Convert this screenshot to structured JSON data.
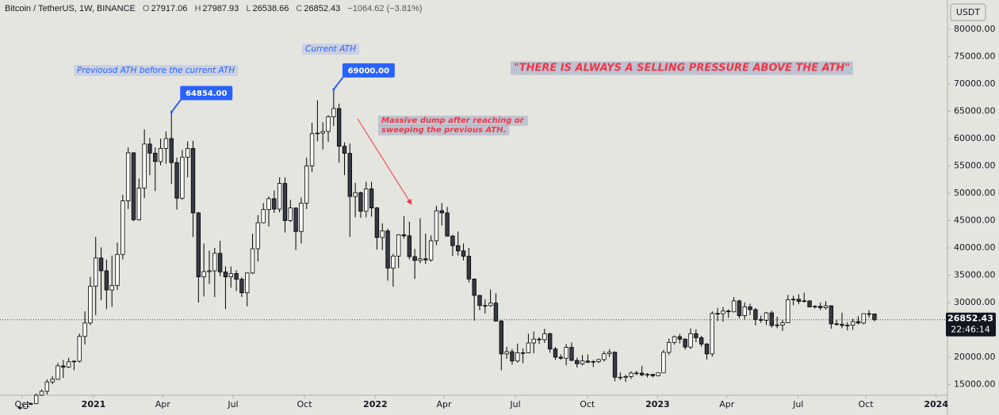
{
  "header": {
    "symbol": "Bitcoin / TetherUS, 1W, BINANCE",
    "letters": [
      "O",
      "H",
      "L",
      "C"
    ],
    "change": "−1064.62 (−3.81%)"
  },
  "chart_data": {
    "type": "candlestick",
    "candles": [
      [
        10776,
        10950,
        10370,
        10666
      ],
      [
        10666,
        11495,
        10530,
        11370
      ],
      [
        11370,
        11720,
        11200,
        11500
      ],
      [
        11500,
        13350,
        11400,
        13030
      ],
      [
        13030,
        14090,
        12900,
        13760
      ],
      [
        13760,
        15960,
        13200,
        15480
      ],
      [
        15480,
        16500,
        15070,
        15960
      ],
      [
        15960,
        18950,
        15850,
        18400
      ],
      [
        18400,
        19500,
        16200,
        18180
      ],
      [
        18180,
        19900,
        18000,
        19150
      ],
      [
        19150,
        19400,
        17600,
        19270
      ],
      [
        19270,
        24300,
        19000,
        23800
      ],
      [
        23800,
        28400,
        22300,
        26250
      ],
      [
        26250,
        34700,
        25900,
        33000
      ],
      [
        33000,
        42000,
        27700,
        38150
      ],
      [
        38150,
        40100,
        30400,
        35800
      ],
      [
        35800,
        37850,
        28800,
        32300
      ],
      [
        32300,
        38600,
        29200,
        33100
      ],
      [
        33100,
        40950,
        32300,
        38800
      ],
      [
        38800,
        49700,
        37900,
        48600
      ],
      [
        48600,
        58400,
        47100,
        57400
      ],
      [
        57400,
        57500,
        44900,
        45150
      ],
      [
        45150,
        52700,
        45000,
        50950
      ],
      [
        50950,
        61700,
        49100,
        59000
      ],
      [
        59000,
        60100,
        53300,
        57330
      ],
      [
        57330,
        58400,
        50400,
        55800
      ],
      [
        55800,
        60000,
        55100,
        58200
      ],
      [
        58200,
        61300,
        55400,
        60000
      ],
      [
        60000,
        64854,
        51700,
        55600
      ],
      [
        55600,
        56500,
        47000,
        49100
      ],
      [
        49100,
        57900,
        48800,
        56600
      ],
      [
        56600,
        59500,
        52900,
        58200
      ],
      [
        58200,
        59600,
        42000,
        46400
      ],
      [
        46400,
        46600,
        30000,
        34700
      ],
      [
        34700,
        40800,
        31100,
        35650
      ],
      [
        35650,
        39500,
        33400,
        35800
      ],
      [
        35800,
        40000,
        31000,
        39000
      ],
      [
        39000,
        41300,
        34800,
        35600
      ],
      [
        35600,
        36600,
        28800,
        34700
      ],
      [
        34700,
        36600,
        32700,
        35300
      ],
      [
        35300,
        35900,
        32100,
        34260
      ],
      [
        34260,
        34600,
        31000,
        31780
      ],
      [
        31780,
        35400,
        29300,
        35400
      ],
      [
        35400,
        42600,
        35200,
        39850
      ],
      [
        39850,
        46000,
        37500,
        44600
      ],
      [
        44600,
        48200,
        44500,
        47000
      ],
      [
        47000,
        49400,
        43900,
        49000
      ],
      [
        49000,
        50500,
        46400,
        47100
      ],
      [
        47100,
        52900,
        46500,
        51800
      ],
      [
        51800,
        52900,
        42800,
        45000
      ],
      [
        45000,
        48800,
        44700,
        47300
      ],
      [
        47300,
        47400,
        39600,
        43000
      ],
      [
        43000,
        49200,
        40800,
        48200
      ],
      [
        48200,
        56500,
        47100,
        55000
      ],
      [
        55000,
        62900,
        53900,
        60900
      ],
      [
        60900,
        67000,
        59500,
        61000
      ],
      [
        61000,
        63000,
        58000,
        61300
      ],
      [
        61300,
        64300,
        59400,
        64000
      ],
      [
        64000,
        69000,
        62300,
        65500
      ],
      [
        65500,
        66400,
        55600,
        58600
      ],
      [
        58600,
        59300,
        53300,
        57300
      ],
      [
        57300,
        59100,
        42000,
        49400
      ],
      [
        49400,
        51900,
        45600,
        50100
      ],
      [
        50100,
        50300,
        45500,
        46700
      ],
      [
        46700,
        52100,
        45600,
        50800
      ],
      [
        50800,
        52100,
        45700,
        47300
      ],
      [
        47300,
        47500,
        39700,
        41900
      ],
      [
        41900,
        44500,
        39600,
        43100
      ],
      [
        43100,
        43500,
        34000,
        36300
      ],
      [
        36300,
        38900,
        32900,
        38500
      ],
      [
        38500,
        42500,
        36300,
        42400
      ],
      [
        42400,
        45800,
        41700,
        42200
      ],
      [
        42200,
        44800,
        37900,
        38400
      ],
      [
        38400,
        39800,
        34300,
        37700
      ],
      [
        37700,
        45400,
        37200,
        38000
      ],
      [
        38000,
        42600,
        37100,
        37800
      ],
      [
        37800,
        42300,
        37500,
        41300
      ],
      [
        41300,
        47700,
        40500,
        46800
      ],
      [
        46800,
        48200,
        44100,
        46400
      ],
      [
        46400,
        47500,
        42100,
        42150
      ],
      [
        42150,
        42400,
        38500,
        40400
      ],
      [
        40400,
        43000,
        38600,
        39450
      ],
      [
        39450,
        40800,
        37700,
        38470
      ],
      [
        38470,
        40000,
        33700,
        34300
      ],
      [
        34300,
        34400,
        26700,
        31300
      ],
      [
        31300,
        31400,
        28600,
        29450
      ],
      [
        29450,
        30600,
        28000,
        29440
      ],
      [
        29440,
        32400,
        29200,
        29900
      ],
      [
        29900,
        31700,
        26560,
        26600
      ],
      [
        26600,
        26800,
        17600,
        20600
      ],
      [
        20600,
        21900,
        19700,
        21000
      ],
      [
        21000,
        21500,
        18600,
        19300
      ],
      [
        19300,
        22500,
        19000,
        20800
      ],
      [
        20800,
        21600,
        18900,
        20790
      ],
      [
        20790,
        24300,
        20700,
        22600
      ],
      [
        22600,
        24700,
        20700,
        23300
      ],
      [
        23300,
        23650,
        22400,
        23200
      ],
      [
        23200,
        25200,
        22600,
        24300
      ],
      [
        24300,
        24450,
        20800,
        21500
      ],
      [
        21500,
        21900,
        19500,
        20000
      ],
      [
        20000,
        20500,
        19500,
        19800
      ],
      [
        19800,
        22400,
        18500,
        21800
      ],
      [
        21800,
        22700,
        19300,
        19400
      ],
      [
        19400,
        19900,
        18100,
        18800
      ],
      [
        18800,
        20400,
        18500,
        19300
      ],
      [
        19300,
        20500,
        18950,
        19070
      ],
      [
        19070,
        19500,
        18200,
        19200
      ],
      [
        19200,
        19700,
        18900,
        19570
      ],
      [
        19570,
        21100,
        19200,
        20630
      ],
      [
        20630,
        21470,
        20000,
        20900
      ],
      [
        20900,
        21050,
        15600,
        16330
      ],
      [
        16330,
        17200,
        15800,
        16280
      ],
      [
        16280,
        16800,
        15480,
        16450
      ],
      [
        16450,
        17400,
        16000,
        17100
      ],
      [
        17100,
        17500,
        16700,
        17090
      ],
      [
        17090,
        18400,
        16500,
        16760
      ],
      [
        16760,
        17100,
        16300,
        16850
      ],
      [
        16850,
        16970,
        16300,
        16600
      ],
      [
        16600,
        17200,
        16500,
        17130
      ],
      [
        17130,
        21300,
        17100,
        20880
      ],
      [
        20880,
        23400,
        20400,
        22700
      ],
      [
        22700,
        23950,
        22300,
        23750
      ],
      [
        23750,
        24250,
        22500,
        23300
      ],
      [
        23300,
        23450,
        21400,
        21850
      ],
      [
        21850,
        25250,
        21500,
        24300
      ],
      [
        24300,
        25100,
        22750,
        23550
      ],
      [
        23550,
        23900,
        21900,
        22400
      ],
      [
        22400,
        22600,
        19550,
        20600
      ],
      [
        20600,
        28400,
        20100,
        28000
      ],
      [
        28000,
        29000,
        26600,
        27950
      ],
      [
        27950,
        29200,
        26500,
        28450
      ],
      [
        28450,
        28750,
        27200,
        28300
      ],
      [
        28300,
        31000,
        28200,
        30300
      ],
      [
        30300,
        30500,
        27100,
        27600
      ],
      [
        27600,
        30000,
        26900,
        29200
      ],
      [
        29200,
        29800,
        27700,
        28700
      ],
      [
        28700,
        29000,
        25800,
        26900
      ],
      [
        26900,
        27600,
        26300,
        26750
      ],
      [
        26750,
        28300,
        25900,
        28100
      ],
      [
        28100,
        28500,
        25400,
        25800
      ],
      [
        25800,
        27400,
        25300,
        25900
      ],
      [
        25900,
        26800,
        24800,
        26300
      ],
      [
        26300,
        31400,
        26250,
        30500
      ],
      [
        30500,
        31250,
        29500,
        30600
      ],
      [
        30600,
        31500,
        29700,
        30200
      ],
      [
        30200,
        31800,
        30000,
        30300
      ],
      [
        30300,
        30400,
        29100,
        29200
      ],
      [
        29200,
        29500,
        28900,
        29300
      ],
      [
        29300,
        30000,
        28600,
        29050
      ],
      [
        29050,
        30250,
        28700,
        29400
      ],
      [
        29400,
        29500,
        25200,
        26100
      ],
      [
        26100,
        26800,
        25800,
        26000
      ],
      [
        26000,
        28150,
        25300,
        25800
      ],
      [
        25800,
        26400,
        24900,
        25850
      ],
      [
        25850,
        27000,
        25000,
        26500
      ],
      [
        26500,
        27500,
        26000,
        26250
      ],
      [
        26250,
        28000,
        26000,
        27950
      ],
      [
        27950,
        28600,
        27200,
        27917.06
      ],
      [
        27917.06,
        27987.93,
        26538.66,
        26852.43
      ]
    ],
    "xlim": [
      -3.7,
      171.5
    ],
    "xticks": [
      {
        "value": 0.4,
        "label": "Oct"
      },
      {
        "value": 13.6,
        "label": "2021"
      },
      {
        "value": 26.4,
        "label": "Apr"
      },
      {
        "value": 39.4,
        "label": "Jul"
      },
      {
        "value": 52.6,
        "label": "Oct"
      },
      {
        "value": 65.7,
        "label": "2022"
      },
      {
        "value": 78.4,
        "label": "Apr"
      },
      {
        "value": 91.6,
        "label": "Jul"
      },
      {
        "value": 104.9,
        "label": "Oct"
      },
      {
        "value": 117.9,
        "label": "2023"
      },
      {
        "value": 130.7,
        "label": "Apr"
      },
      {
        "value": 143.9,
        "label": "Jul"
      },
      {
        "value": 156.4,
        "label": "Oct"
      },
      {
        "value": 169.4,
        "label": "2024"
      }
    ],
    "ylim": [
      13040,
      85360
    ],
    "yticks": [
      {
        "value": 15000,
        "label": "15000.00"
      },
      {
        "value": 20000,
        "label": "20000.00"
      },
      {
        "value": 25000,
        "label": "25000.00"
      },
      {
        "value": 30000,
        "label": "30000.00"
      },
      {
        "value": 35000,
        "label": "35000.00"
      },
      {
        "value": 40000,
        "label": "40000.00"
      },
      {
        "value": 45000,
        "label": "45000.00"
      },
      {
        "value": 50000,
        "label": "50000.00"
      },
      {
        "value": 55000,
        "label": "55000.00"
      },
      {
        "value": 60000,
        "label": "60000.00"
      },
      {
        "value": 65000,
        "label": "65000.00"
      },
      {
        "value": 70000,
        "label": "70000.00"
      },
      {
        "value": 75000,
        "label": "75000.00"
      },
      {
        "value": 80000,
        "label": "80000.00"
      }
    ],
    "grid": false,
    "up_color": "#ffffff",
    "down_color": "#363a45",
    "wick_color": "#000000",
    "currency": "USDT",
    "countdown": "22:46:14",
    "ath_markers": [
      {
        "x": 28,
        "value": 64854,
        "label": "64854.00",
        "color": "#2962ff"
      },
      {
        "x": 58,
        "value": 69000,
        "label": "69000.00",
        "color": "#2962ff"
      }
    ],
    "annotations": [
      {
        "text": "Previousd ATH before the current ATH",
        "color": "#2962ff"
      },
      {
        "text": "Current ATH",
        "color": "#2962ff"
      },
      {
        "text": "Massive dump after reaching or",
        "color": "#f23645"
      },
      {
        "text": "sweeping the previous ATH.",
        "color": "#f23645"
      },
      {
        "text": "\"THERE IS ALWAYS A SELLING PRESSURE ABOVE THE ATH\"",
        "color": "#f23645"
      }
    ]
  }
}
